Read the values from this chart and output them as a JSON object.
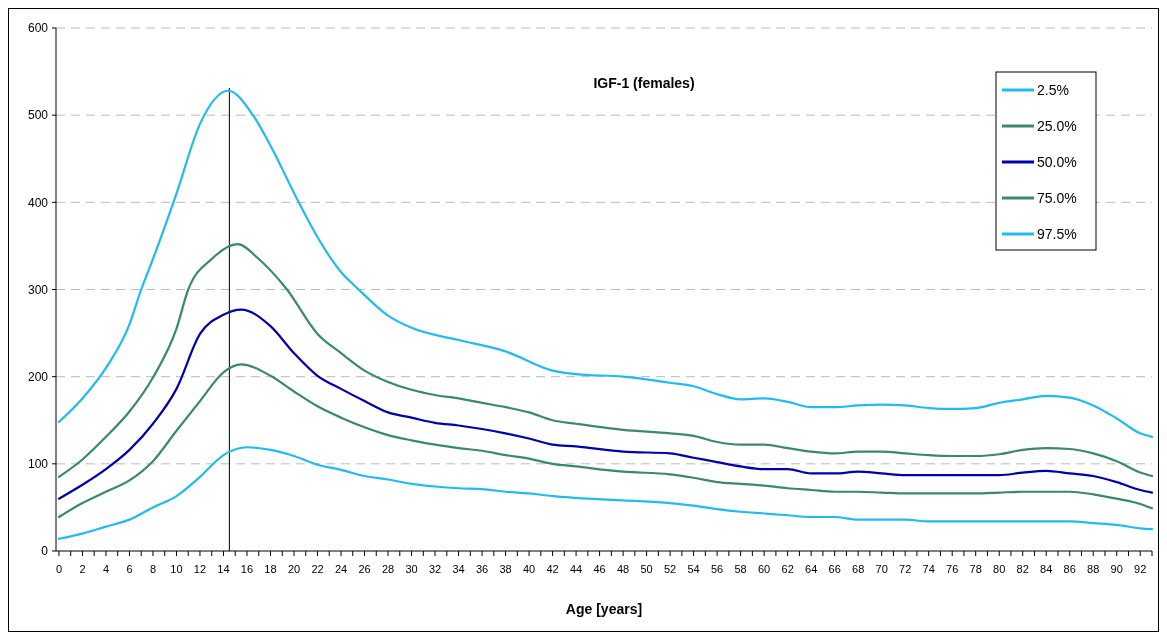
{
  "chart_data": {
    "type": "line",
    "title": "IGF-1 (females)",
    "xlabel": "Age [years]",
    "xlim": [
      -0.25,
      93
    ],
    "ylim": [
      0,
      600
    ],
    "yticks": [
      0,
      100,
      200,
      300,
      400,
      500,
      600
    ],
    "xticks": [
      0,
      {
        "value": 1,
        "label": null
      },
      2,
      {
        "value": 3,
        "label": null
      },
      4,
      {
        "value": 5,
        "label": null
      },
      6,
      {
        "value": 7,
        "label": null
      },
      8,
      {
        "value": 9,
        "label": null
      },
      10,
      {
        "value": 11,
        "label": null
      },
      12,
      {
        "value": 13,
        "label": null
      },
      14,
      {
        "value": 15,
        "label": null
      },
      16,
      {
        "value": 17,
        "label": null
      },
      18,
      {
        "value": 19,
        "label": null
      },
      20,
      {
        "value": 21,
        "label": null
      },
      22,
      {
        "value": 23,
        "label": null
      },
      24,
      {
        "value": 25,
        "label": null
      },
      26,
      {
        "value": 27,
        "label": null
      },
      28,
      {
        "value": 29,
        "label": null
      },
      30,
      {
        "value": 31,
        "label": null
      },
      32,
      {
        "value": 33,
        "label": null
      },
      34,
      {
        "value": 35,
        "label": null
      },
      36,
      {
        "value": 37,
        "label": null
      },
      38,
      {
        "value": 39,
        "label": null
      },
      40,
      {
        "value": 41,
        "label": null
      },
      42,
      {
        "value": 43,
        "label": null
      },
      44,
      {
        "value": 45,
        "label": null
      },
      46,
      {
        "value": 47,
        "label": null
      },
      48,
      {
        "value": 49,
        "label": null
      },
      50,
      {
        "value": 51,
        "label": null
      },
      52,
      {
        "value": 53,
        "label": null
      },
      54,
      {
        "value": 55,
        "label": null
      },
      56,
      {
        "value": 57,
        "label": null
      },
      58,
      {
        "value": 59,
        "label": null
      },
      60,
      {
        "value": 61,
        "label": null
      },
      62,
      {
        "value": 63,
        "label": null
      },
      64,
      {
        "value": 65,
        "label": null
      },
      66,
      {
        "value": 67,
        "label": null
      },
      68,
      {
        "value": 69,
        "label": null
      },
      70,
      {
        "value": 71,
        "label": null
      },
      72,
      {
        "value": 73,
        "label": null
      },
      74,
      {
        "value": 75,
        "label": null
      },
      76,
      {
        "value": 77,
        "label": null
      },
      78,
      {
        "value": 79,
        "label": null
      },
      80,
      {
        "value": 81,
        "label": null
      },
      82,
      {
        "value": 83,
        "label": null
      },
      84,
      {
        "value": 85,
        "label": null
      },
      86,
      {
        "value": 87,
        "label": null
      },
      88,
      {
        "value": 89,
        "label": null
      },
      90,
      {
        "value": 91,
        "label": null
      },
      92,
      {
        "value": 93,
        "label": null
      }
    ],
    "grid": "y",
    "legend": "top right",
    "line_style": "solid",
    "ref_lines": [
      {
        "axis": "x",
        "value": 14.5,
        "color": "#000000"
      }
    ],
    "series": [
      {
        "name": "2.5%",
        "color": "#22bbee",
        "x": [
          0,
          2,
          4,
          6,
          8,
          10,
          12,
          14,
          16,
          18,
          20,
          22,
          24,
          26,
          28,
          30,
          32,
          34,
          36,
          38,
          40,
          42,
          44,
          48,
          52,
          54,
          56,
          58,
          60,
          62,
          64,
          66,
          68,
          70,
          72,
          74,
          76,
          78,
          80,
          82,
          84,
          86,
          88,
          90,
          92,
          93
        ],
        "values": [
          14,
          20,
          28,
          36,
          50,
          63,
          85,
          110,
          119,
          116,
          109,
          99,
          93,
          86,
          82,
          77,
          74,
          72,
          71,
          68,
          66,
          63,
          61,
          58,
          55,
          52,
          48,
          45,
          43,
          41,
          39,
          39,
          36,
          36,
          36,
          34,
          34,
          34,
          34,
          34,
          34,
          34,
          32,
          30,
          26,
          25
        ]
      },
      {
        "name": "25.0%",
        "color": "#3a8a6a",
        "x": [
          0,
          2,
          4,
          6,
          8,
          10,
          12,
          14,
          15.5,
          18,
          20,
          22,
          24,
          26,
          28,
          30,
          32,
          34,
          36,
          38,
          40,
          42,
          44,
          48,
          52,
          54,
          56,
          58,
          60,
          62,
          64,
          66,
          68,
          70,
          72,
          74,
          76,
          78,
          80,
          82,
          84,
          86,
          88,
          90,
          92,
          93
        ],
        "values": [
          39,
          55,
          68,
          81,
          103,
          138,
          172,
          205,
          214,
          201,
          183,
          166,
          153,
          142,
          133,
          127,
          122,
          118,
          115,
          110,
          106,
          100,
          97,
          91,
          88,
          84,
          79,
          77,
          75,
          72,
          70,
          68,
          68,
          67,
          66,
          66,
          66,
          66,
          67,
          68,
          68,
          68,
          65,
          60,
          54,
          49
        ]
      },
      {
        "name": "50.0%",
        "color": "#0000aa",
        "x": [
          0,
          2,
          4,
          6,
          8,
          10,
          12,
          14,
          15.5,
          18,
          20,
          22,
          24,
          26,
          28,
          30,
          32,
          34,
          36,
          38,
          40,
          42,
          44,
          48,
          52,
          54,
          56,
          58,
          60,
          62,
          64,
          66,
          68,
          70,
          72,
          74,
          76,
          78,
          80,
          82,
          84,
          86,
          88,
          90,
          92,
          93
        ],
        "values": [
          60,
          76,
          94,
          116,
          146,
          186,
          249,
          271,
          277,
          258,
          227,
          201,
          186,
          172,
          159,
          153,
          147,
          144,
          140,
          135,
          129,
          122,
          120,
          114,
          112,
          107,
          102,
          97,
          94,
          94,
          89,
          89,
          91,
          89,
          87,
          87,
          87,
          87,
          87,
          90,
          92,
          89,
          86,
          79,
          70,
          67
        ]
      },
      {
        "name": "75.0%",
        "color": "#3a8a6a",
        "x": [
          0,
          2,
          4,
          6,
          8,
          10,
          11,
          13,
          15.2,
          17,
          19.4,
          22,
          24,
          26,
          28,
          30,
          32,
          34,
          36,
          38,
          40,
          42,
          44,
          48,
          52,
          54,
          56,
          58,
          60,
          62,
          64,
          66,
          68,
          70,
          72,
          74,
          76,
          78,
          80,
          82,
          84,
          86,
          88,
          90,
          92,
          93
        ],
        "values": [
          85,
          105,
          131,
          160,
          199,
          255,
          300,
          335,
          352,
          335,
          300,
          249,
          227,
          207,
          194,
          185,
          179,
          175,
          170,
          165,
          159,
          150,
          146,
          139,
          135,
          132,
          125,
          122,
          122,
          118,
          114,
          112,
          114,
          114,
          112,
          110,
          109,
          109,
          111,
          116,
          118,
          117,
          112,
          103,
          90,
          86
        ]
      },
      {
        "name": "97.5%",
        "color": "#22bbee",
        "x": [
          0,
          2,
          4,
          6,
          7,
          8,
          10,
          12,
          14.4,
          16.5,
          18,
          20.4,
          22,
          24,
          25.5,
          28,
          30,
          34,
          38,
          42,
          44,
          48,
          52,
          54,
          56,
          58,
          60,
          62,
          64,
          66,
          68,
          70,
          72,
          74,
          76,
          78,
          80,
          82,
          84,
          86,
          88,
          90,
          92,
          93
        ],
        "values": [
          148,
          175,
          210,
          260,
          300,
          335,
          410,
          490,
          528,
          500,
          465,
          400,
          360,
          320,
          300,
          270,
          256,
          242,
          229,
          207,
          203,
          200,
          193,
          189,
          180,
          174,
          175,
          171,
          165,
          165,
          167,
          168,
          167,
          164,
          163,
          164,
          170,
          174,
          178,
          176,
          167,
          152,
          135,
          131
        ]
      }
    ]
  }
}
